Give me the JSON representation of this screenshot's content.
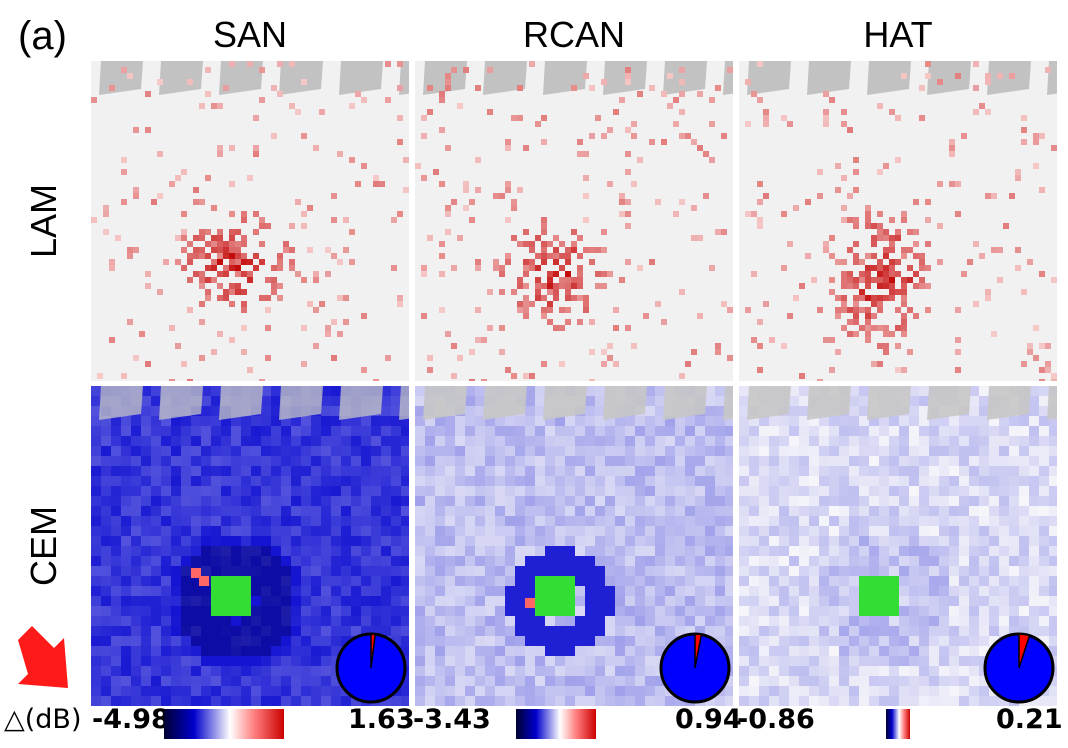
{
  "figure": {
    "panel_label": "(a)",
    "columns": [
      "SAN",
      "RCAN",
      "HAT"
    ],
    "rows": [
      "LAM",
      "CEM"
    ],
    "delta_label": "△(dB)",
    "colorbars": [
      {
        "min": "-4.98",
        "max": "1.63",
        "min_value": -4.98,
        "max_value": 1.63
      },
      {
        "min": "-3.43",
        "max": "0.94",
        "min_value": -3.43,
        "max_value": 0.94
      },
      {
        "min": "-0.86",
        "max": "0.21",
        "min_value": -0.86,
        "max_value": 0.21
      }
    ],
    "pie_negative_share": [
      0.98,
      0.97,
      0.95
    ],
    "colors": {
      "lam_red": "#d01818",
      "cem_blue": "#1010c8",
      "cem_green": "#33dd33",
      "arrow_red": "#ff1a1a"
    }
  }
}
